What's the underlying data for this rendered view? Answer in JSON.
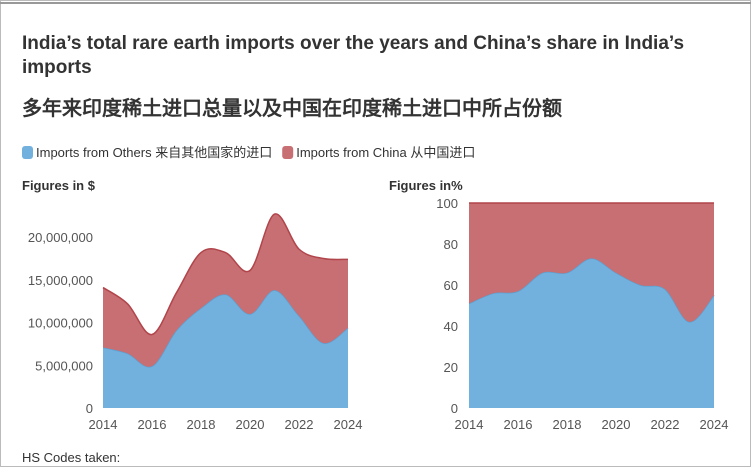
{
  "header": {
    "title": "India’s total rare earth imports over the years and China’s share in India’s imports",
    "subtitle": "多年来印度稀土进口总量以及中国在印度稀土进口中所占份额"
  },
  "footer": "HS Codes taken:",
  "chart_data": [
    {
      "type": "stacked-area",
      "y_label": "Figures in $",
      "x": [
        2014,
        2015,
        2016,
        2017,
        2018,
        2019,
        2020,
        2021,
        2022,
        2023,
        2024
      ],
      "xlim": [
        2014,
        2024
      ],
      "xticks": [
        2014,
        2016,
        2018,
        2020,
        2022,
        2024
      ],
      "ylim": [
        0,
        24000000
      ],
      "yticks": [
        0,
        {
          "value": 5000000,
          "label": "5,000,000"
        },
        {
          "value": 10000000,
          "label": "10,000,000"
        },
        {
          "value": 15000000,
          "label": "15,000,000"
        },
        {
          "value": 20000000,
          "label": "20,000,000"
        }
      ],
      "grid": false,
      "series": [
        {
          "name": "Imports from Others  来自其他国家的进口",
          "color": "#72b1de",
          "values": [
            7100000,
            6400000,
            4900000,
            9100000,
            11700000,
            13300000,
            11000000,
            13800000,
            10800000,
            7600000,
            9400000
          ]
        },
        {
          "name": "Imports from China  从中国进口",
          "color": "#c86f73",
          "values": [
            7000000,
            5800000,
            3700000,
            4400000,
            6500000,
            4900000,
            5100000,
            8900000,
            7800000,
            9900000,
            8000000
          ]
        }
      ]
    },
    {
      "type": "stacked-area",
      "y_label": "Figures in%",
      "x": [
        2014,
        2015,
        2016,
        2017,
        2018,
        2019,
        2020,
        2021,
        2022,
        2023,
        2024
      ],
      "xlim": [
        2014,
        2024
      ],
      "xticks": [
        2014,
        2016,
        2018,
        2020,
        2022,
        2024
      ],
      "ylim": [
        0,
        100
      ],
      "yticks": [
        0,
        20,
        40,
        60,
        80,
        100
      ],
      "grid": false,
      "series": [
        {
          "color": "#72b1de",
          "values": [
            51,
            56,
            57,
            66,
            66,
            73,
            66,
            60,
            58,
            42,
            55
          ]
        },
        {
          "color": "#c86f73",
          "values": [
            49,
            44,
            43,
            34,
            34,
            27,
            34,
            40,
            42,
            58,
            45
          ]
        }
      ]
    }
  ]
}
